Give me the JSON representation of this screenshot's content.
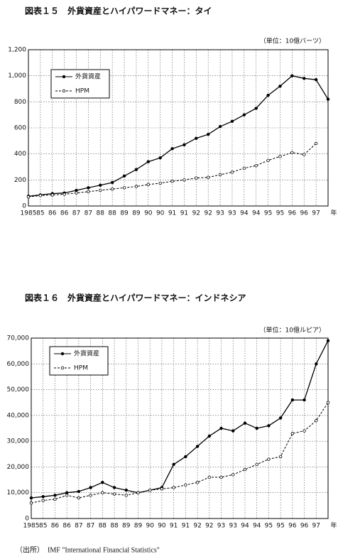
{
  "chart_data": [
    {
      "type": "line",
      "title": "図表１５　外貨資産とハイパワードマネー：タイ",
      "unit": "（単位：10億バーツ）",
      "x_axis_label": "年",
      "categories": [
        "1985",
        "85",
        "86",
        "86",
        "87",
        "87",
        "88",
        "88",
        "89",
        "89",
        "90",
        "90",
        "91",
        "91",
        "92",
        "92",
        "93",
        "93",
        "94",
        "94",
        "95",
        "95",
        "96",
        "96",
        "97",
        null
      ],
      "series": [
        {
          "name": "外貨資産",
          "color": "#000000",
          "values": [
            75,
            85,
            95,
            100,
            120,
            140,
            160,
            180,
            230,
            280,
            340,
            370,
            440,
            470,
            520,
            550,
            610,
            650,
            700,
            750,
            850,
            920,
            1000,
            980,
            970,
            820
          ]
        },
        {
          "name": "HPM",
          "color": "#000000",
          "values": [
            70,
            80,
            85,
            90,
            100,
            110,
            120,
            130,
            140,
            150,
            165,
            175,
            190,
            200,
            215,
            220,
            240,
            260,
            290,
            310,
            350,
            380,
            410,
            395,
            480,
            null
          ]
        }
      ],
      "ylim": [
        0,
        1200
      ],
      "yticks": [
        0,
        200,
        400,
        600,
        800,
        {
          "value": 1000,
          "label": "1,000"
        },
        {
          "value": 1200,
          "label": "1,200"
        }
      ],
      "grid": true
    },
    {
      "type": "line",
      "title": "図表１６　外貨資産とハイパワードマネー：インドネシア",
      "unit": "（単位：10億ルピア）",
      "x_axis_label": "年",
      "categories": [
        "1985",
        "85",
        "86",
        "86",
        "87",
        "87",
        "88",
        "88",
        "89",
        "89",
        "90",
        "90",
        "91",
        "91",
        "92",
        "92",
        "93",
        "93",
        "94",
        "94",
        "95",
        "95",
        "96",
        "96",
        "97",
        null
      ],
      "series": [
        {
          "name": "外貨資産",
          "color": "#000000",
          "values": [
            8000,
            8500,
            9000,
            10000,
            10500,
            12000,
            14000,
            12000,
            11000,
            10000,
            11000,
            12000,
            21000,
            24000,
            28000,
            32000,
            35000,
            34000,
            37000,
            35000,
            36000,
            39000,
            46000,
            46000,
            60000,
            69000
          ]
        },
        {
          "name": "HPM",
          "color": "#000000",
          "values": [
            6000,
            7000,
            7500,
            9000,
            8000,
            9000,
            10000,
            9500,
            9000,
            10000,
            11000,
            11500,
            12000,
            13000,
            14000,
            16000,
            16000,
            17000,
            19000,
            21000,
            23000,
            24000,
            33000,
            34000,
            38000,
            45000
          ]
        }
      ],
      "ylim": [
        0,
        70000
      ],
      "yticks": [
        0,
        {
          "value": 10000,
          "label": "10,000"
        },
        {
          "value": 20000,
          "label": "20,000"
        },
        {
          "value": 30000,
          "label": "30,000"
        },
        {
          "value": 40000,
          "label": "40,000"
        },
        {
          "value": 50000,
          "label": "50,000"
        },
        {
          "value": 60000,
          "label": "60,000"
        },
        {
          "value": 70000,
          "label": "70,000"
        }
      ],
      "grid": true
    }
  ],
  "source": "（出所）　IMF \"International Financial Statistics\""
}
